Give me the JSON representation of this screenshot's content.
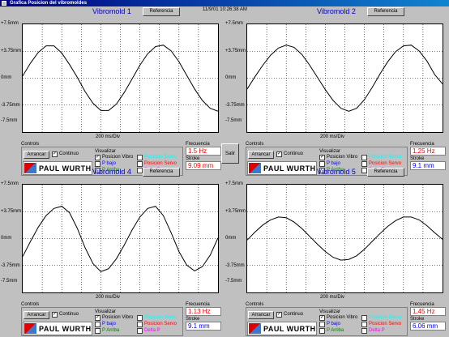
{
  "window": {
    "title": "Grafica Posicion del vibromoldes",
    "timestamp": "11/9/01 10:26:38 AM"
  },
  "salir_label": "Salir",
  "common": {
    "ref_label": "Referencia",
    "controls_title": "Controls",
    "arrancar_label": "Arrancar",
    "continuo_label": "Continuo",
    "visualizar_title": "Visualizar",
    "opt_pos_vibro": "Posicion Vibro",
    "opt_pos_servo": "Posicion Servo",
    "opt_p_bajo": "P bajo",
    "opt_p_arriba": "P Arriba",
    "opt_delta_p": "Delta P",
    "freq_label": "Frecuencia",
    "stroke_label": "Stroke",
    "logo_text": "PAUL WURTH",
    "xlabel": "200 ms/Div",
    "yticks": [
      "+7.5mm",
      "+3.75mm",
      "0mm",
      "-3.75mm",
      "-7.5mm"
    ]
  },
  "colors": {
    "pos_servo": "#00ffff",
    "p_bajo": "#0000ff",
    "p_arriba": "#008000",
    "delta_p": "#ff00ff",
    "title": "#0000c8"
  },
  "panels": [
    {
      "title": "Vibromold 1",
      "freq": "1.5 Hz",
      "stroke": "9.09 mm",
      "stroke_color": "#ff0000"
    },
    {
      "title": "Vibromold 2",
      "freq": "1.25 Hz",
      "stroke": "9.1 mm",
      "stroke_color": "#0000ff"
    },
    {
      "title": "Vibromold 4",
      "freq": "1.13 Hz",
      "stroke": "9.1 mm",
      "stroke_color": "#0000ff"
    },
    {
      "title": "Vibromold 5",
      "freq": "1.45 Hz",
      "stroke": "6.06 mm",
      "stroke_color": "#0000ff"
    }
  ],
  "chart_data": [
    {
      "type": "line",
      "title": "Vibromold 1",
      "xlabel": "200 ms/Div",
      "ylim": [
        -7.5,
        7.5
      ],
      "grid": true,
      "x": [
        0,
        0.8,
        1.6,
        2.4,
        3.2,
        4.0,
        4.8,
        5.6,
        6.4,
        7.2,
        8.0,
        8.8,
        9.6,
        10.4,
        11.2,
        12.0,
        12.8,
        13.6,
        14.4,
        15.2,
        16.0,
        16.8,
        17.6,
        18.4,
        19.2,
        20.0
      ],
      "y": [
        0.3,
        2.1,
        3.6,
        4.5,
        4.5,
        3.5,
        1.9,
        0.1,
        -1.9,
        -3.5,
        -4.5,
        -4.5,
        -3.6,
        -2.0,
        -0.1,
        1.8,
        3.4,
        4.4,
        4.6,
        3.8,
        2.3,
        0.4,
        -1.5,
        -3.1,
        -4.2,
        -4.6
      ]
    },
    {
      "type": "line",
      "title": "Vibromold 2",
      "xlabel": "200 ms/Div",
      "ylim": [
        -7.5,
        7.5
      ],
      "grid": true,
      "x": [
        0,
        0.8,
        1.6,
        2.4,
        3.2,
        4.0,
        4.8,
        5.6,
        6.4,
        7.2,
        8.0,
        8.8,
        9.6,
        10.4,
        11.2,
        12.0,
        12.8,
        13.6,
        14.4,
        15.2,
        16.0,
        16.8,
        17.6,
        18.4,
        19.2,
        20.0
      ],
      "y": [
        -1.5,
        0.2,
        1.8,
        3.2,
        4.2,
        4.6,
        4.3,
        3.3,
        1.8,
        0.1,
        -1.6,
        -3.1,
        -4.2,
        -4.6,
        -4.2,
        -3.0,
        -1.3,
        0.6,
        2.3,
        3.7,
        4.5,
        4.6,
        3.8,
        2.4,
        0.5,
        -0.8
      ]
    },
    {
      "type": "line",
      "title": "Vibromold 4",
      "xlabel": "200 ms/Div",
      "ylim": [
        -7.5,
        7.5
      ],
      "grid": true,
      "x": [
        0,
        0.8,
        1.6,
        2.4,
        3.2,
        4.0,
        4.8,
        5.6,
        6.4,
        7.2,
        8.0,
        8.8,
        9.6,
        10.4,
        11.2,
        12.0,
        12.8,
        13.6,
        14.4,
        15.2,
        16.0,
        16.8,
        17.6,
        18.4,
        19.2,
        20.0
      ],
      "y": [
        -2.5,
        -0.4,
        1.6,
        3.2,
        4.2,
        4.5,
        3.6,
        1.4,
        -1.3,
        -3.5,
        -4.6,
        -4.2,
        -2.8,
        -0.9,
        1.2,
        3.0,
        4.2,
        4.5,
        3.2,
        0.8,
        -1.8,
        -3.7,
        -4.5,
        -3.9,
        -2.3,
        0.1
      ]
    },
    {
      "type": "line",
      "title": "Vibromold 5",
      "xlabel": "200 ms/Div",
      "ylim": [
        -7.5,
        7.5
      ],
      "grid": true,
      "x": [
        0,
        0.8,
        1.6,
        2.4,
        3.2,
        4.0,
        4.8,
        5.6,
        6.4,
        7.2,
        8.0,
        8.8,
        9.6,
        10.4,
        11.2,
        12.0,
        12.8,
        13.6,
        14.4,
        15.2,
        16.0,
        16.8,
        17.6,
        18.4,
        19.2,
        20.0
      ],
      "y": [
        -0.2,
        0.9,
        1.9,
        2.6,
        3.0,
        2.9,
        2.3,
        1.4,
        0.3,
        -0.8,
        -1.8,
        -2.6,
        -3.0,
        -2.9,
        -2.4,
        -1.5,
        -0.4,
        0.7,
        1.7,
        2.5,
        3.0,
        3.0,
        2.6,
        1.8,
        0.8,
        -0.1
      ]
    }
  ]
}
